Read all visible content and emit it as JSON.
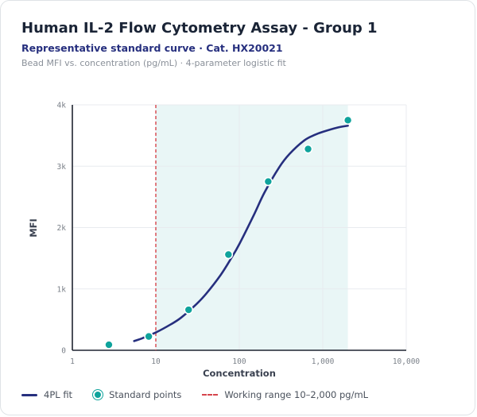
{
  "header": {
    "title": "Human IL-2 Flow Cytometry Assay - Group 1",
    "subtitle": "Representative standard curve · Cat. HX20021",
    "caption": "Bead MFI vs. concentration (pg/mL) · 4-parameter logistic fit"
  },
  "colors": {
    "curve": "#262f7e",
    "points": "#0fa39c",
    "threshold": "#d6454c",
    "range_fill": "#e9f6f6"
  },
  "chart_data": {
    "type": "scatter",
    "title": "Human IL-2 Flow Cytometry Assay - Group 1",
    "subtitle": "Representative standard curve · Cat. HX20021",
    "xlabel": "Concentration",
    "ylabel": "MFI",
    "x_scale": "log",
    "xlim": [
      1,
      10000
    ],
    "ylim": [
      0,
      4000
    ],
    "x_ticks": [
      1,
      10,
      100,
      1000,
      10000
    ],
    "x_tick_labels": [
      "1",
      "10",
      "100",
      "1,000",
      "10,000"
    ],
    "y_ticks": [
      0,
      1000,
      2000,
      3000,
      4000
    ],
    "y_tick_labels": [
      "0",
      "1k",
      "2k",
      "3k",
      "4k"
    ],
    "grid": true,
    "legend_position": "bottom-left",
    "series": [
      {
        "name": "Standard points",
        "kind": "scatter",
        "x": [
          2.74,
          8.23,
          24.7,
          74.1,
          222,
          667,
          2000
        ],
        "y": [
          90,
          225,
          660,
          1560,
          2750,
          3280,
          3750
        ]
      },
      {
        "name": "4PL fit",
        "kind": "line",
        "x": [
          5.5,
          7,
          10,
          15,
          20,
          30,
          40,
          60,
          80,
          100,
          150,
          200,
          300,
          400,
          600,
          800,
          1000,
          1500,
          2000
        ],
        "y": [
          150,
          200,
          290,
          420,
          530,
          740,
          920,
          1230,
          1500,
          1730,
          2210,
          2570,
          2980,
          3200,
          3420,
          3510,
          3560,
          3630,
          3660
        ]
      }
    ],
    "annotations": [
      {
        "name": "Working range 10–2,000 pg/mL",
        "kind": "vline-and-band",
        "x": 10,
        "x_end": 2000
      }
    ]
  },
  "legend": {
    "fit_label": "4PL fit",
    "points_label": "Standard points",
    "range_label": "Working range 10–2,000 pg/mL"
  }
}
